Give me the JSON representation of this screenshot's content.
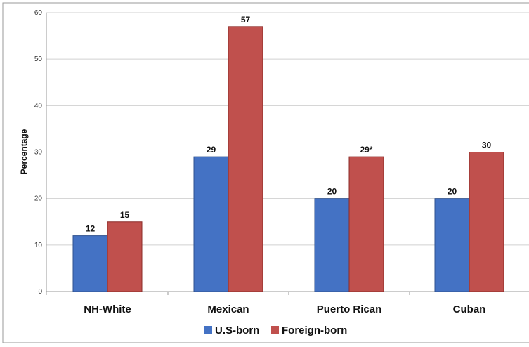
{
  "chart_data": {
    "type": "bar",
    "title": "",
    "xlabel": "",
    "ylabel": "Percentage",
    "ylim": [
      0,
      60
    ],
    "yticks": [
      "0",
      "10",
      "20",
      "30",
      "40",
      "50",
      "60"
    ],
    "grid": true,
    "legend_position": "bottom",
    "categories": [
      "NH-White",
      "Mexican",
      "Puerto Rican",
      "Cuban"
    ],
    "series": [
      {
        "name": "U.S-born",
        "color": "#4472c4",
        "values": [
          12,
          29,
          20,
          20
        ],
        "labels": [
          "12",
          "29",
          "20",
          "20"
        ]
      },
      {
        "name": "Foreign-born",
        "color": "#c0504d",
        "values": [
          15,
          57,
          29,
          30
        ],
        "labels": [
          "15",
          "57",
          "29*",
          "30"
        ]
      }
    ]
  }
}
